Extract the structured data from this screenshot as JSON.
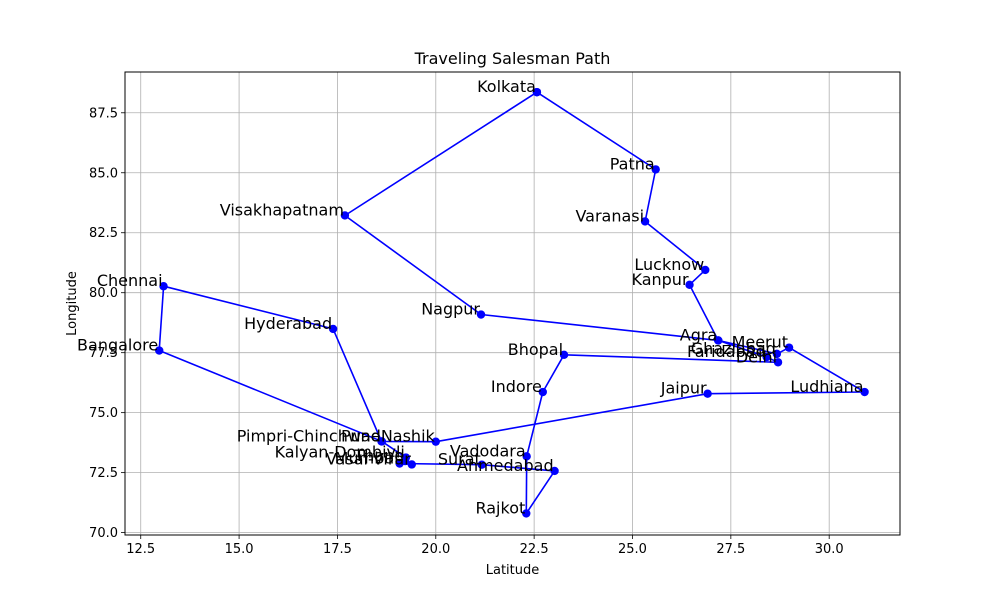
{
  "chart_data": {
    "type": "line",
    "title": "Traveling Salesman Path",
    "xlabel": "Latitude",
    "ylabel": "Longitude",
    "xlim": [
      12.1,
      31.8
    ],
    "ylim": [
      69.9,
      89.2
    ],
    "xticks": [
      "12.5",
      "15.0",
      "17.5",
      "20.0",
      "22.5",
      "25.0",
      "27.5",
      "30.0"
    ],
    "yticks": [
      "70.0",
      "72.5",
      "75.0",
      "77.5",
      "80.0",
      "82.5",
      "85.0",
      "87.5"
    ],
    "grid": true,
    "line_color": "#0000ff",
    "marker_color": "#0000ff",
    "route": [
      {
        "name": "Kolkata",
        "x": 22.57,
        "y": 88.36
      },
      {
        "name": "Patna",
        "x": 25.59,
        "y": 85.14
      },
      {
        "name": "Varanasi",
        "x": 25.32,
        "y": 82.97
      },
      {
        "name": "Lucknow",
        "x": 26.85,
        "y": 80.95
      },
      {
        "name": "Kanpur",
        "x": 26.45,
        "y": 80.33
      },
      {
        "name": "Agra",
        "x": 27.18,
        "y": 78.01
      },
      {
        "name": "Ghaziabad",
        "x": 28.67,
        "y": 77.45
      },
      {
        "name": "Meerut",
        "x": 28.98,
        "y": 77.71
      },
      {
        "name": "Ludhiana",
        "x": 30.9,
        "y": 75.86
      },
      {
        "name": "Jaipur",
        "x": 26.91,
        "y": 75.79
      },
      {
        "name": "Nashik",
        "x": 20.0,
        "y": 73.79
      },
      {
        "name": "Pune",
        "x": 18.62,
        "y": 73.8
      },
      {
        "name": "Hyderabad",
        "x": 17.39,
        "y": 78.49
      },
      {
        "name": "Chennai",
        "x": 13.08,
        "y": 80.27
      },
      {
        "name": "Bangalore",
        "x": 12.97,
        "y": 77.59
      },
      {
        "name": "Pimpri-Chinchwad",
        "x": 18.63,
        "y": 73.8
      },
      {
        "name": "Kalyan-Dombivli",
        "x": 19.24,
        "y": 73.13
      },
      {
        "name": "Thane",
        "x": 19.22,
        "y": 72.98
      },
      {
        "name": "Vasai-Virar",
        "x": 19.39,
        "y": 72.84
      },
      {
        "name": "Mumbai",
        "x": 19.08,
        "y": 72.88
      },
      {
        "name": "Surat",
        "x": 21.17,
        "y": 72.83
      },
      {
        "name": "Ahmedabad",
        "x": 23.02,
        "y": 72.57
      },
      {
        "name": "Rajkot",
        "x": 22.3,
        "y": 70.8
      },
      {
        "name": "Vadodara",
        "x": 22.31,
        "y": 73.18
      },
      {
        "name": "Indore",
        "x": 22.72,
        "y": 75.86
      },
      {
        "name": "Bhopal",
        "x": 23.26,
        "y": 77.41
      },
      {
        "name": "Delhi",
        "x": 28.7,
        "y": 77.1
      },
      {
        "name": "Faridabad",
        "x": 28.41,
        "y": 77.32
      },
      {
        "name": "Agra",
        "x": 27.18,
        "y": 78.01
      },
      {
        "name": "Nagpur",
        "x": 21.15,
        "y": 79.09
      },
      {
        "name": "Visakhapatnam",
        "x": 17.69,
        "y": 83.22
      },
      {
        "name": "Kolkata",
        "x": 22.57,
        "y": 88.36
      }
    ],
    "labels": [
      {
        "text": "Kolkata",
        "x": 22.57,
        "y": 88.36
      },
      {
        "text": "Patna",
        "x": 25.59,
        "y": 85.14
      },
      {
        "text": "Varanasi",
        "x": 25.32,
        "y": 82.97
      },
      {
        "text": "Lucknow",
        "x": 26.85,
        "y": 80.95
      },
      {
        "text": "Kanpur",
        "x": 26.45,
        "y": 80.33
      },
      {
        "text": "Visakhapatnam",
        "x": 17.69,
        "y": 83.22
      },
      {
        "text": "Chennai",
        "x": 13.08,
        "y": 80.27
      },
      {
        "text": "Hyderabad",
        "x": 17.39,
        "y": 78.49
      },
      {
        "text": "Nagpur",
        "x": 21.15,
        "y": 79.09
      },
      {
        "text": "Agra",
        "x": 27.18,
        "y": 78.01
      },
      {
        "text": "Meerut",
        "x": 28.98,
        "y": 77.71
      },
      {
        "text": "Ghaziabad",
        "x": 28.67,
        "y": 77.45
      },
      {
        "text": "Faridabad",
        "x": 28.41,
        "y": 77.32
      },
      {
        "text": "Delhi",
        "x": 28.7,
        "y": 77.1
      },
      {
        "text": "Bangalore",
        "x": 12.97,
        "y": 77.59
      },
      {
        "text": "Bhopal",
        "x": 23.26,
        "y": 77.41
      },
      {
        "text": "Indore",
        "x": 22.72,
        "y": 75.86
      },
      {
        "text": "Ludhiana",
        "x": 30.9,
        "y": 75.86
      },
      {
        "text": "Jaipur",
        "x": 26.91,
        "y": 75.79
      },
      {
        "text": "Pimpri-Chinchwad",
        "x": 18.63,
        "y": 73.8
      },
      {
        "text": "Pune",
        "x": 18.62,
        "y": 73.8
      },
      {
        "text": "Nashik",
        "x": 20.0,
        "y": 73.79
      },
      {
        "text": "Kalyan-Dombivli",
        "x": 19.24,
        "y": 73.13
      },
      {
        "text": "Vadodara",
        "x": 22.31,
        "y": 73.18
      },
      {
        "text": "Thane",
        "x": 19.22,
        "y": 72.98
      },
      {
        "text": "Vasai-Virar",
        "x": 19.39,
        "y": 72.84
      },
      {
        "text": "Mumbai",
        "x": 19.08,
        "y": 72.88
      },
      {
        "text": "Surat",
        "x": 21.17,
        "y": 72.83
      },
      {
        "text": "Ahmedabad",
        "x": 23.02,
        "y": 72.57
      },
      {
        "text": "Rajkot",
        "x": 22.3,
        "y": 70.8
      }
    ]
  }
}
